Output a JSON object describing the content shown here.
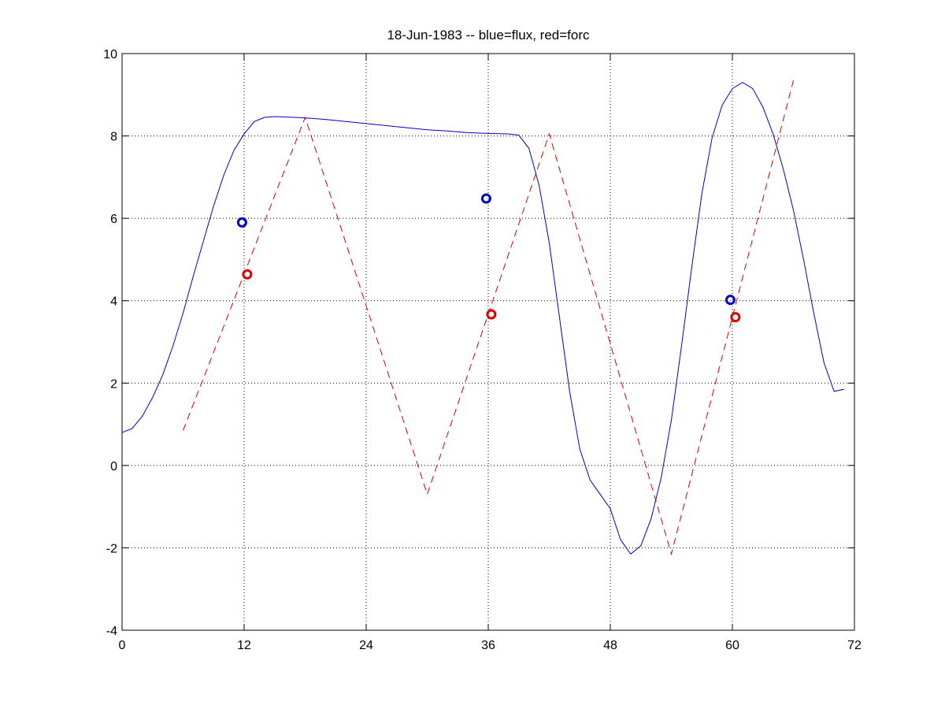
{
  "chart_data": {
    "type": "line",
    "title": "18-Jun-1983 -- blue=flux, red=forc",
    "xlabel": "",
    "ylabel": "",
    "xlim": [
      0,
      72
    ],
    "ylim": [
      -4,
      10
    ],
    "xticks": [
      0,
      12,
      24,
      36,
      48,
      60,
      72
    ],
    "yticks": [
      -4,
      -2,
      0,
      2,
      4,
      6,
      8,
      10
    ],
    "grid": true,
    "colors": {
      "flux": "#0000cc",
      "forc": "#dd0000"
    },
    "series": [
      {
        "style": "solid",
        "color": "#0000cc",
        "x": [
          0,
          1,
          2,
          3,
          4,
          5,
          6,
          7,
          8,
          9,
          10,
          11,
          12,
          13,
          14,
          15,
          16,
          17,
          18,
          20,
          22,
          24,
          26,
          28,
          30,
          32,
          34,
          36,
          38,
          39,
          40,
          41,
          42,
          43,
          44,
          45,
          46,
          47,
          48,
          49,
          50,
          51,
          52,
          53,
          54,
          55,
          56,
          57,
          58,
          59,
          60,
          61,
          62,
          63,
          64,
          65,
          66,
          67,
          68,
          69,
          70,
          71
        ],
        "values": [
          0.8,
          0.9,
          1.2,
          1.65,
          2.2,
          2.9,
          3.7,
          4.6,
          5.45,
          6.3,
          7.05,
          7.65,
          8.05,
          8.35,
          8.45,
          8.47,
          8.46,
          8.45,
          8.44,
          8.4,
          8.35,
          8.3,
          8.25,
          8.2,
          8.15,
          8.12,
          8.08,
          8.06,
          8.05,
          8.02,
          7.7,
          6.8,
          5.4,
          3.6,
          1.8,
          0.4,
          -0.35,
          -0.7,
          -1.05,
          -1.8,
          -2.15,
          -1.95,
          -1.3,
          -0.3,
          1.1,
          2.9,
          4.8,
          6.6,
          7.95,
          8.75,
          9.15,
          9.3,
          9.15,
          8.7,
          8.05,
          7.2,
          6.2,
          5.0,
          3.7,
          2.5,
          1.8,
          1.85
        ]
      },
      {
        "style": "dashed",
        "color": "#dd0000",
        "x": [
          6,
          18,
          30,
          42,
          54,
          66
        ],
        "values": [
          0.85,
          8.45,
          -0.7,
          8.05,
          -2.15,
          9.35
        ]
      }
    ],
    "markers": [
      {
        "x": 11.8,
        "y": 5.9,
        "color": "#0000cc"
      },
      {
        "x": 35.8,
        "y": 6.48,
        "color": "#0000cc"
      },
      {
        "x": 59.8,
        "y": 4.02,
        "color": "#0000cc"
      },
      {
        "x": 12.3,
        "y": 4.64,
        "color": "#dd0000"
      },
      {
        "x": 36.3,
        "y": 3.67,
        "color": "#dd0000"
      },
      {
        "x": 60.3,
        "y": 3.6,
        "color": "#dd0000"
      }
    ]
  }
}
